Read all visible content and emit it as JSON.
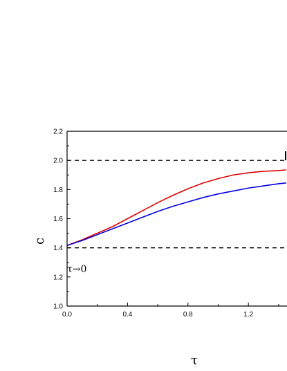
{
  "chart_data": {
    "type": "line",
    "xlabel": "τ",
    "ylabel": "c",
    "xlim": [
      0.0,
      1.45
    ],
    "ylim": [
      1.0,
      2.2
    ],
    "x_ticks": [
      "0.0",
      "0.4",
      "0.8",
      "1.2"
    ],
    "y_ticks": [
      "1.0",
      "1.2",
      "1.4",
      "1.6",
      "1.8",
      "2.0",
      "2.2"
    ],
    "reference_lines": [
      {
        "y": 2.0,
        "style": "dashed",
        "color": "#000000"
      },
      {
        "y": 1.4,
        "style": "dashed",
        "color": "#000000"
      }
    ],
    "annotation": "τ→0",
    "series": [
      {
        "color": "#e00000",
        "x": [
          0.0,
          0.1,
          0.2,
          0.3,
          0.4,
          0.5,
          0.6,
          0.7,
          0.8,
          0.9,
          1.0,
          1.1,
          1.2,
          1.3,
          1.4,
          1.45
        ],
        "y": [
          1.416,
          1.455,
          1.5,
          1.545,
          1.6,
          1.655,
          1.71,
          1.76,
          1.805,
          1.845,
          1.875,
          1.9,
          1.915,
          1.925,
          1.93,
          1.935
        ]
      },
      {
        "color": "#0000e0",
        "x": [
          0.0,
          0.1,
          0.2,
          0.3,
          0.4,
          0.5,
          0.6,
          0.7,
          0.8,
          0.9,
          1.0,
          1.1,
          1.2,
          1.3,
          1.4,
          1.45
        ],
        "y": [
          1.416,
          1.45,
          1.49,
          1.53,
          1.57,
          1.61,
          1.65,
          1.685,
          1.715,
          1.745,
          1.77,
          1.79,
          1.81,
          1.825,
          1.84,
          1.845
        ]
      }
    ]
  }
}
